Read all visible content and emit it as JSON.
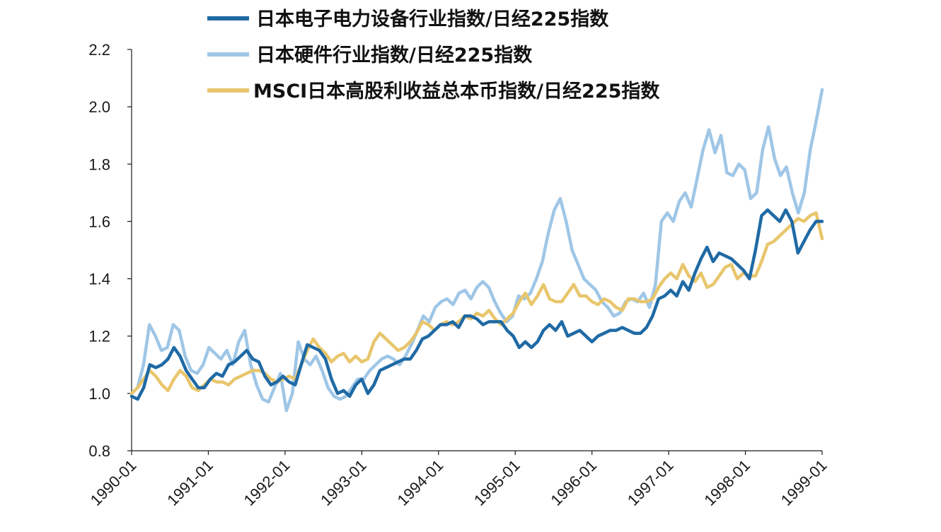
{
  "chart_data": {
    "type": "line",
    "title": "",
    "xlabel": "",
    "ylabel": "",
    "ylim": [
      0.8,
      2.2
    ],
    "y_ticks": [
      "0.8",
      "1.0",
      "1.2",
      "1.4",
      "1.6",
      "1.8",
      "2.0",
      "2.2"
    ],
    "x_ticks": [
      "1990-01",
      "1991-01",
      "1992-01",
      "1993-01",
      "1994-01",
      "1995-01",
      "1996-01",
      "1997-01",
      "1998-01",
      "1999-01"
    ],
    "x_start": "1990-01",
    "x_end": "1999-01",
    "legend_position": "top",
    "grid": false,
    "series": [
      {
        "name": "日本电子电力设备行业指数/日经225指数",
        "color": "#1f6aa5",
        "values": [
          0.99,
          0.98,
          1.02,
          1.1,
          1.09,
          1.1,
          1.12,
          1.16,
          1.13,
          1.08,
          1.05,
          1.02,
          1.02,
          1.05,
          1.07,
          1.06,
          1.1,
          1.11,
          1.13,
          1.15,
          1.12,
          1.11,
          1.06,
          1.03,
          1.04,
          1.06,
          1.04,
          1.03,
          1.1,
          1.17,
          1.16,
          1.15,
          1.12,
          1.05,
          1.0,
          1.01,
          0.99,
          1.03,
          1.05,
          1.0,
          1.03,
          1.08,
          1.09,
          1.1,
          1.11,
          1.12,
          1.12,
          1.15,
          1.19,
          1.2,
          1.22,
          1.24,
          1.24,
          1.25,
          1.23,
          1.27,
          1.27,
          1.26,
          1.24,
          1.25,
          1.25,
          1.25,
          1.22,
          1.2,
          1.16,
          1.18,
          1.16,
          1.18,
          1.22,
          1.24,
          1.22,
          1.25,
          1.2,
          1.21,
          1.22,
          1.2,
          1.18,
          1.2,
          1.21,
          1.22,
          1.22,
          1.23,
          1.22,
          1.21,
          1.21,
          1.23,
          1.27,
          1.33,
          1.34,
          1.36,
          1.34,
          1.39,
          1.36,
          1.42,
          1.47,
          1.51,
          1.46,
          1.49,
          1.48,
          1.47,
          1.45,
          1.43,
          1.4,
          1.5,
          1.62,
          1.64,
          1.62,
          1.6,
          1.64,
          1.6,
          1.49,
          1.53,
          1.57,
          1.6,
          1.6
        ]
      },
      {
        "name": "日本硬件行业指数/日经225指数",
        "color": "#9fc6e6",
        "values": [
          1.0,
          1.02,
          1.1,
          1.24,
          1.2,
          1.15,
          1.16,
          1.24,
          1.22,
          1.13,
          1.08,
          1.07,
          1.1,
          1.16,
          1.14,
          1.12,
          1.15,
          1.1,
          1.18,
          1.22,
          1.1,
          1.03,
          0.98,
          0.97,
          1.02,
          1.07,
          0.94,
          1.0,
          1.18,
          1.12,
          1.1,
          1.13,
          1.08,
          1.02,
          0.99,
          0.98,
          0.99,
          1.02,
          1.05,
          1.05,
          1.08,
          1.1,
          1.12,
          1.13,
          1.12,
          1.1,
          1.13,
          1.17,
          1.22,
          1.27,
          1.25,
          1.3,
          1.32,
          1.33,
          1.31,
          1.35,
          1.36,
          1.33,
          1.37,
          1.39,
          1.37,
          1.32,
          1.28,
          1.25,
          1.27,
          1.34,
          1.33,
          1.35,
          1.4,
          1.46,
          1.56,
          1.64,
          1.68,
          1.6,
          1.5,
          1.45,
          1.4,
          1.38,
          1.36,
          1.32,
          1.3,
          1.27,
          1.28,
          1.32,
          1.33,
          1.32,
          1.35,
          1.3,
          1.38,
          1.6,
          1.63,
          1.6,
          1.67,
          1.7,
          1.65,
          1.75,
          1.85,
          1.92,
          1.84,
          1.9,
          1.77,
          1.76,
          1.8,
          1.78,
          1.68,
          1.7,
          1.85,
          1.93,
          1.82,
          1.76,
          1.79,
          1.7,
          1.63,
          1.7,
          1.85,
          1.95,
          2.06
        ]
      },
      {
        "name": "MSCI日本高股利收益总本币指数/日经225指数",
        "color": "#e8c66c",
        "values": [
          1.0,
          1.02,
          1.05,
          1.08,
          1.06,
          1.03,
          1.01,
          1.05,
          1.08,
          1.06,
          1.02,
          1.01,
          1.03,
          1.05,
          1.04,
          1.04,
          1.03,
          1.05,
          1.06,
          1.07,
          1.08,
          1.08,
          1.07,
          1.05,
          1.04,
          1.05,
          1.06,
          1.05,
          1.1,
          1.15,
          1.19,
          1.16,
          1.14,
          1.11,
          1.13,
          1.14,
          1.11,
          1.13,
          1.11,
          1.12,
          1.18,
          1.21,
          1.19,
          1.17,
          1.15,
          1.16,
          1.18,
          1.21,
          1.25,
          1.24,
          1.22,
          1.24,
          1.25,
          1.24,
          1.25,
          1.27,
          1.26,
          1.28,
          1.27,
          1.29,
          1.26,
          1.24,
          1.26,
          1.28,
          1.32,
          1.35,
          1.31,
          1.34,
          1.38,
          1.33,
          1.32,
          1.32,
          1.35,
          1.38,
          1.34,
          1.34,
          1.32,
          1.31,
          1.33,
          1.32,
          1.3,
          1.29,
          1.33,
          1.33,
          1.32,
          1.32,
          1.33,
          1.37,
          1.4,
          1.42,
          1.4,
          1.45,
          1.41,
          1.39,
          1.42,
          1.37,
          1.38,
          1.41,
          1.44,
          1.45,
          1.4,
          1.42,
          1.41,
          1.41,
          1.46,
          1.52,
          1.53,
          1.55,
          1.57,
          1.59,
          1.61,
          1.6,
          1.62,
          1.63,
          1.54
        ]
      }
    ]
  }
}
